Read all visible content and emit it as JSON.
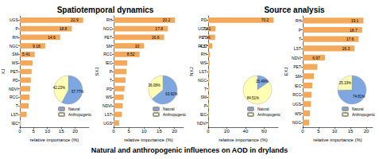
{
  "headings": [
    {
      "text": "Spatiotemporal dynamics",
      "panels": [
        0,
        1
      ]
    },
    {
      "text": "Source analysis",
      "panels": [
        2,
        3
      ]
    }
  ],
  "caption": "Natural and anthropogenic influences on AOD in drylands",
  "chart_data": [
    {
      "type": "bar",
      "orientation": "horizontal",
      "ylabel": "XJ",
      "xlabel": "relative importance (%)",
      "categories": [
        "UGS",
        "P",
        "RH",
        "NGC",
        "SM",
        "WS",
        "PET",
        "PD",
        "NDVI",
        "RCC",
        "T",
        "LST",
        "IEC"
      ],
      "values": [
        22.9,
        18.8,
        14.6,
        9.18,
        5.41,
        4.6,
        4.3,
        4.0,
        3.8,
        3.5,
        3.2,
        2.5,
        0.4
      ],
      "value_labels": [
        "22.9",
        "18.8",
        "14.6",
        "9.18",
        "5.41",
        null,
        null,
        null,
        null,
        null,
        null,
        null,
        null
      ],
      "data_labels": true,
      "color": "#f4a85a",
      "xlim": [
        0,
        25
      ],
      "xticks": [
        0,
        5,
        10,
        15,
        20
      ],
      "inset": {
        "type": "pie",
        "categories": [
          "Natural",
          "Anthropogenic"
        ],
        "values": [
          57.77,
          42.23
        ],
        "value_labels": [
          "57.77%",
          "42.23%"
        ],
        "colors": [
          "#7ea6e0",
          "#ffffb3"
        ],
        "legend": "lower right"
      }
    },
    {
      "type": "bar",
      "orientation": "horizontal",
      "ylabel": "SXJ",
      "xlabel": "relative importance (%)",
      "categories": [
        "RH",
        "NGC",
        "PET",
        "SM",
        "RCC",
        "IEC",
        "P",
        "T",
        "PD",
        "WS",
        "NDVI",
        "LST",
        "UGS"
      ],
      "values": [
        20.2,
        17.8,
        16.6,
        10,
        8.52,
        4.5,
        4.2,
        3.9,
        3.6,
        3.3,
        3.0,
        2.7,
        1.8
      ],
      "value_labels": [
        "20.2",
        "17.8",
        "16.6",
        "10",
        "8.52",
        null,
        null,
        null,
        null,
        null,
        null,
        null,
        null
      ],
      "data_labels": true,
      "color": "#f4a85a",
      "xlim": [
        0,
        23
      ],
      "xticks": [
        0,
        5,
        10,
        15,
        20
      ],
      "inset": {
        "type": "pie",
        "categories": [
          "Natural",
          "Anthropogenic"
        ],
        "values": [
          63.92,
          36.08
        ],
        "value_labels": [
          "63.92%",
          "36.08%"
        ],
        "colors": [
          "#7ea6e0",
          "#ffffb3"
        ],
        "legend": "lower right"
      }
    },
    {
      "type": "bar",
      "orientation": "horizontal",
      "ylabel": "NXJ",
      "xlabel": "relative importance (%)",
      "categories": [
        "PD",
        "UGS",
        "PET",
        "RCC",
        "RH",
        "WS",
        "LST",
        "NGC",
        "T",
        "SM",
        "P",
        "IEC",
        "NDVI"
      ],
      "values": [
        70.2,
        7.81,
        7.36,
        4.37,
        2.0,
        1.5,
        1.3,
        1.1,
        1.0,
        0.9,
        0.8,
        0.6,
        0.5
      ],
      "value_labels": [
        "70.2",
        "7.81",
        "7.36",
        "4.37",
        null,
        null,
        null,
        null,
        null,
        null,
        null,
        null,
        null
      ],
      "data_labels": true,
      "color": "#f4a85a",
      "xlim": [
        0,
        75
      ],
      "xticks": [
        0,
        20,
        40,
        60
      ],
      "inset": {
        "type": "pie",
        "categories": [
          "Natural",
          "Anthropogenic"
        ],
        "values": [
          15.49,
          84.51
        ],
        "value_labels": [
          "15.49%",
          "84.51%"
        ],
        "colors": [
          "#7ea6e0",
          "#ffffb3"
        ],
        "legend": "lower right"
      }
    },
    {
      "type": "bar",
      "orientation": "horizontal",
      "ylabel": "EXJ",
      "xlabel": "relative importance (%)",
      "categories": [
        "RH",
        "P",
        "T",
        "LST",
        "NDVI",
        "PET",
        "SM",
        "IEC",
        "RCC",
        "UGS",
        "WS",
        "NGC"
      ],
      "values": [
        19.1,
        18.7,
        17.6,
        16.3,
        6.97,
        4.6,
        3.5,
        3.0,
        2.8,
        2.6,
        2.3,
        2.0
      ],
      "value_labels": [
        "19.1",
        "18.7",
        "17.6",
        "16.3",
        "6.97",
        null,
        null,
        null,
        null,
        null,
        null,
        null
      ],
      "data_labels": true,
      "color": "#f4a85a",
      "xlim": [
        0,
        22
      ],
      "xticks": [
        0,
        5,
        10,
        15,
        20
      ],
      "inset": {
        "type": "pie",
        "categories": [
          "Natural",
          "Anthropogenic"
        ],
        "values": [
          74.81,
          25.19
        ],
        "value_labels": [
          "74.81%",
          "25.19%"
        ],
        "colors": [
          "#7ea6e0",
          "#ffffb3"
        ],
        "legend": "lower right"
      }
    }
  ]
}
